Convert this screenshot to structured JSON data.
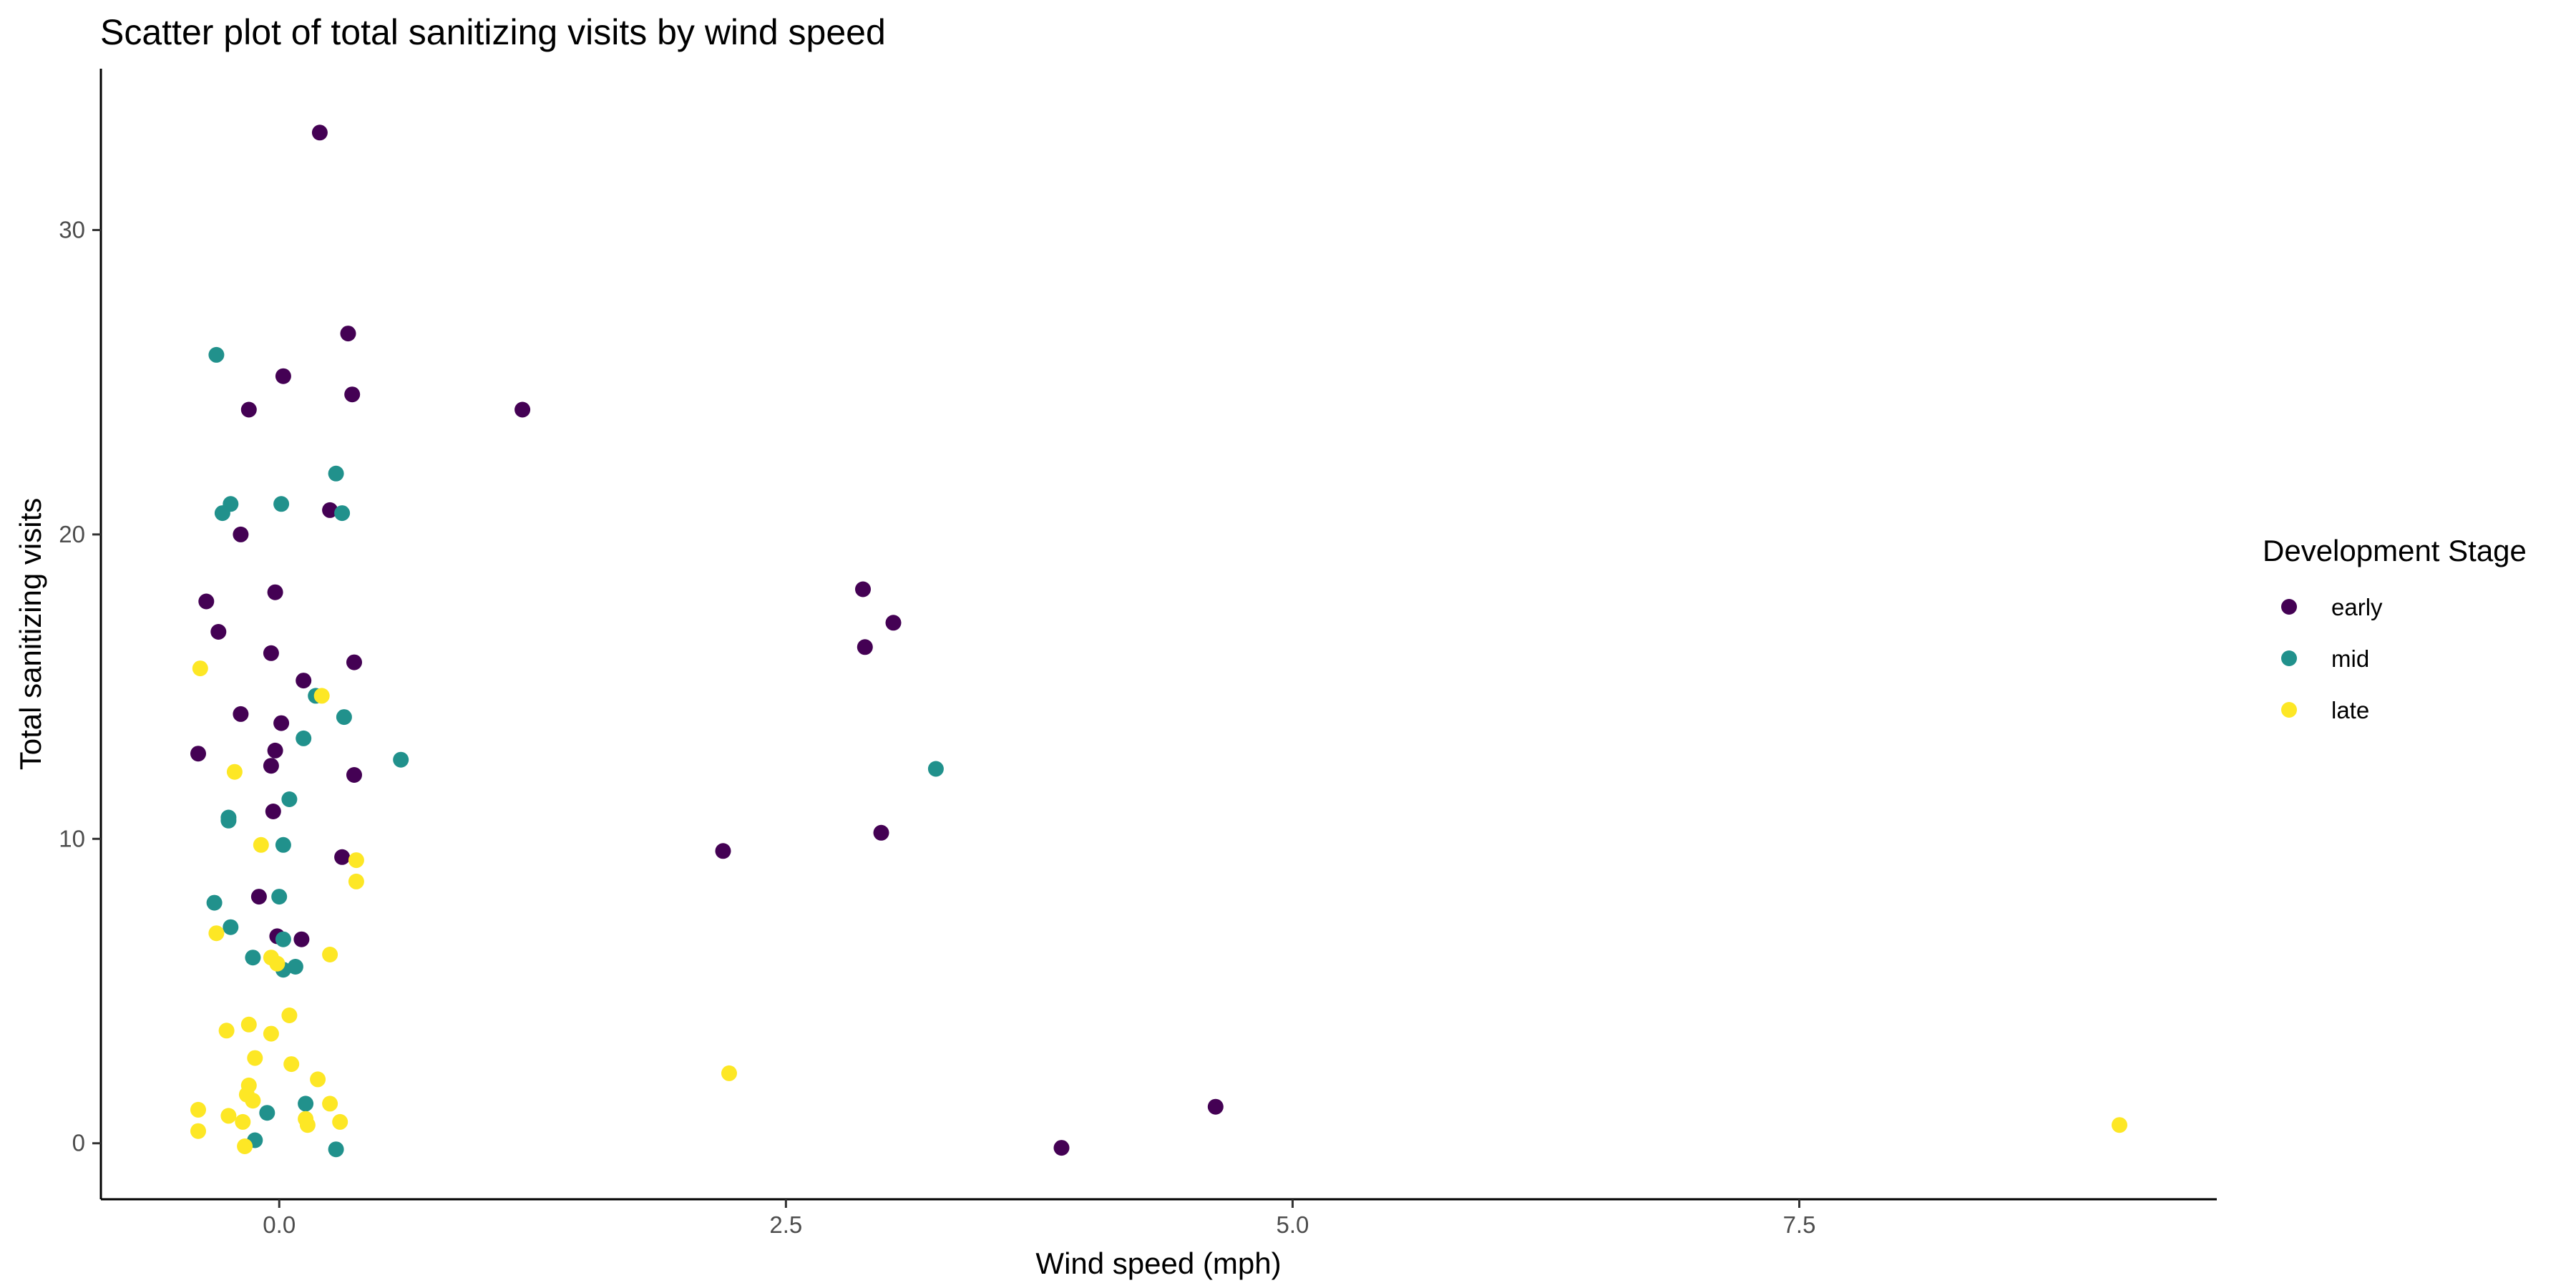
{
  "chart_data": {
    "type": "scatter",
    "title": "Scatter plot of total sanitizing visits by wind speed",
    "xlabel": "Wind speed (mph)",
    "ylabel": "Total sanitizing visits",
    "xlim": [
      -0.88,
      9.56
    ],
    "ylim": [
      -1.84,
      35.3
    ],
    "xticks": [
      0.0,
      2.5,
      5.0,
      7.5
    ],
    "xtick_labels": [
      "0.0",
      "2.5",
      "5.0",
      "7.5"
    ],
    "yticks": [
      0,
      10,
      20,
      30
    ],
    "ytick_labels": [
      "0",
      "10",
      "20",
      "30"
    ],
    "grid": false,
    "legend": {
      "title": "Development Stage",
      "position": "right"
    },
    "series": [
      {
        "name": "early",
        "color": "#440154",
        "points": [
          {
            "x": 0.2,
            "y": 33.2
          },
          {
            "x": 0.34,
            "y": 26.6
          },
          {
            "x": 0.02,
            "y": 25.2
          },
          {
            "x": 0.36,
            "y": 24.6
          },
          {
            "x": -0.15,
            "y": 24.1
          },
          {
            "x": 1.2,
            "y": 24.1
          },
          {
            "x": 0.25,
            "y": 20.8
          },
          {
            "x": -0.19,
            "y": 20.0
          },
          {
            "x": -0.02,
            "y": 18.1
          },
          {
            "x": -0.36,
            "y": 17.8
          },
          {
            "x": -0.3,
            "y": 16.8
          },
          {
            "x": -0.04,
            "y": 16.1
          },
          {
            "x": 0.37,
            "y": 15.8
          },
          {
            "x": 0.12,
            "y": 15.2
          },
          {
            "x": -0.19,
            "y": 14.1
          },
          {
            "x": 0.01,
            "y": 13.8
          },
          {
            "x": -0.02,
            "y": 12.9
          },
          {
            "x": -0.4,
            "y": 12.8
          },
          {
            "x": -0.04,
            "y": 12.4
          },
          {
            "x": 0.37,
            "y": 12.1
          },
          {
            "x": -0.03,
            "y": 10.9
          },
          {
            "x": 0.31,
            "y": 9.4
          },
          {
            "x": -0.1,
            "y": 8.1
          },
          {
            "x": -0.01,
            "y": 6.8
          },
          {
            "x": 0.11,
            "y": 6.7
          },
          {
            "x": 2.88,
            "y": 18.2
          },
          {
            "x": 3.03,
            "y": 17.1
          },
          {
            "x": 2.89,
            "y": 16.3
          },
          {
            "x": 2.97,
            "y": 10.2
          },
          {
            "x": 2.19,
            "y": 9.6
          },
          {
            "x": 4.62,
            "y": 1.2
          },
          {
            "x": 3.86,
            "y": -0.15
          }
        ]
      },
      {
        "name": "mid",
        "color": "#21918c",
        "points": [
          {
            "x": -0.31,
            "y": 25.9
          },
          {
            "x": 0.28,
            "y": 22.0
          },
          {
            "x": -0.24,
            "y": 21.0
          },
          {
            "x": 0.01,
            "y": 21.0
          },
          {
            "x": -0.28,
            "y": 20.7
          },
          {
            "x": 0.31,
            "y": 20.7
          },
          {
            "x": 0.18,
            "y": 14.7
          },
          {
            "x": 0.32,
            "y": 14.0
          },
          {
            "x": 0.12,
            "y": 13.3
          },
          {
            "x": 0.6,
            "y": 12.6
          },
          {
            "x": 3.24,
            "y": 12.3
          },
          {
            "x": 0.05,
            "y": 11.3
          },
          {
            "x": -0.25,
            "y": 10.7
          },
          {
            "x": -0.25,
            "y": 10.6
          },
          {
            "x": 0.02,
            "y": 9.8
          },
          {
            "x": -0.32,
            "y": 7.9
          },
          {
            "x": 0.0,
            "y": 8.1
          },
          {
            "x": -0.24,
            "y": 7.1
          },
          {
            "x": 0.02,
            "y": 6.7
          },
          {
            "x": -0.13,
            "y": 6.1
          },
          {
            "x": 0.08,
            "y": 5.8
          },
          {
            "x": 0.02,
            "y": 5.7
          },
          {
            "x": 0.13,
            "y": 1.3
          },
          {
            "x": -0.06,
            "y": 1.0
          },
          {
            "x": -0.12,
            "y": 0.1
          },
          {
            "x": 0.28,
            "y": -0.2
          }
        ]
      },
      {
        "name": "late",
        "color": "#fde725",
        "points": [
          {
            "x": -0.39,
            "y": 15.6
          },
          {
            "x": 0.21,
            "y": 14.7
          },
          {
            "x": -0.22,
            "y": 12.2
          },
          {
            "x": -0.09,
            "y": 9.8
          },
          {
            "x": 0.38,
            "y": 9.3
          },
          {
            "x": 0.38,
            "y": 8.6
          },
          {
            "x": -0.31,
            "y": 6.9
          },
          {
            "x": 0.25,
            "y": 6.2
          },
          {
            "x": -0.04,
            "y": 6.1
          },
          {
            "x": -0.01,
            "y": 5.9
          },
          {
            "x": 0.05,
            "y": 4.2
          },
          {
            "x": -0.15,
            "y": 3.9
          },
          {
            "x": -0.26,
            "y": 3.7
          },
          {
            "x": -0.04,
            "y": 3.6
          },
          {
            "x": -0.12,
            "y": 2.8
          },
          {
            "x": 0.06,
            "y": 2.6
          },
          {
            "x": 2.22,
            "y": 2.3
          },
          {
            "x": 0.19,
            "y": 2.1
          },
          {
            "x": -0.15,
            "y": 1.9
          },
          {
            "x": -0.16,
            "y": 1.6
          },
          {
            "x": -0.13,
            "y": 1.4
          },
          {
            "x": 0.25,
            "y": 1.3
          },
          {
            "x": -0.4,
            "y": 1.1
          },
          {
            "x": -0.25,
            "y": 0.9
          },
          {
            "x": 0.13,
            "y": 0.8
          },
          {
            "x": -0.18,
            "y": 0.7
          },
          {
            "x": 0.3,
            "y": 0.7
          },
          {
            "x": 9.08,
            "y": 0.6
          },
          {
            "x": 0.14,
            "y": 0.6
          },
          {
            "x": -0.4,
            "y": 0.4
          },
          {
            "x": -0.17,
            "y": -0.1
          }
        ]
      }
    ]
  }
}
